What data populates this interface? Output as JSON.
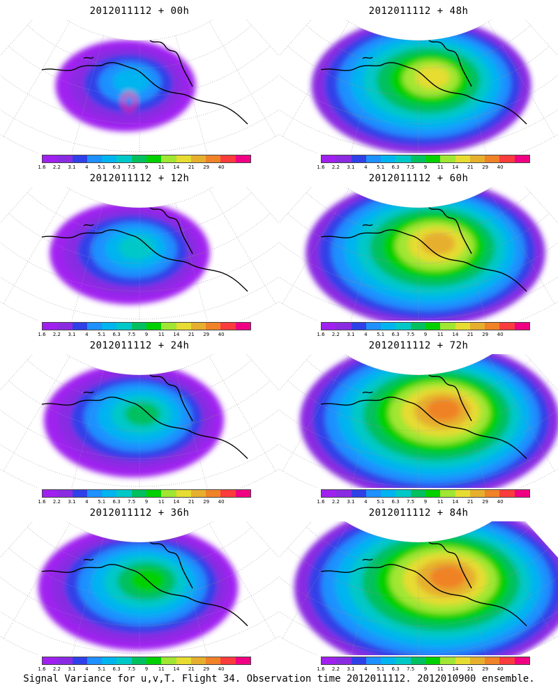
{
  "panels": [
    {
      "title": "2012011112 + 00h",
      "stage": 0
    },
    {
      "title": "2012011112 + 48h",
      "stage": 4
    },
    {
      "title": "2012011112 + 12h",
      "stage": 1
    },
    {
      "title": "2012011112 + 60h",
      "stage": 5
    },
    {
      "title": "2012011112 + 24h",
      "stage": 2
    },
    {
      "title": "2012011112 + 72h",
      "stage": 6
    },
    {
      "title": "2012011112 + 36h",
      "stage": 3
    },
    {
      "title": "2012011112 + 84h",
      "stage": 7
    }
  ],
  "colorbar": {
    "labels": [
      "1.6",
      "2.2",
      "3.1",
      "4",
      "5.1",
      "6.3",
      "7.5",
      "9",
      "11",
      "14",
      "21",
      "29",
      "40"
    ],
    "colors": [
      "#a020f0",
      "#8a2be2",
      "#3040e8",
      "#1e90ff",
      "#00b4f0",
      "#00c8c8",
      "#00c060",
      "#00d000",
      "#a0e632",
      "#e6dc32",
      "#e6af2d",
      "#f08228",
      "#fa3c3c",
      "#f00082"
    ]
  },
  "caption": "Signal Variance for u,v,T. Flight 34. Observation time 2012011112. 2012010900 ensemble."
}
